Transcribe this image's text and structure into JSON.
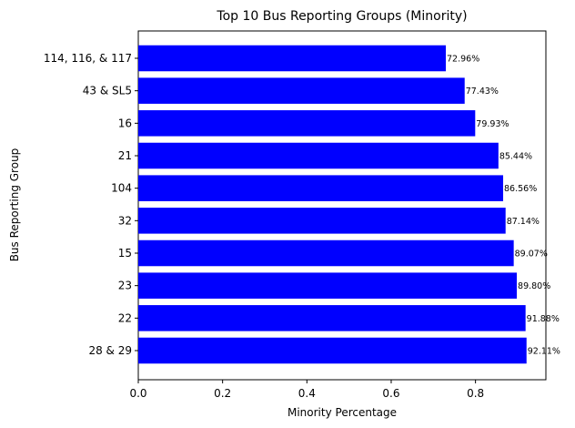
{
  "chart_data": {
    "type": "bar",
    "orientation": "horizontal",
    "title": "Top 10 Bus Reporting Groups (Minority)",
    "xlabel": "Minority Percentage",
    "ylabel": "Bus Reporting Group",
    "xlim": [
      0,
      0.967
    ],
    "xticks": [
      "0.0",
      "0.2",
      "0.4",
      "0.6",
      "0.8"
    ],
    "xtick_values": [
      0,
      0.2,
      0.4,
      0.6,
      0.8
    ],
    "bar_color": "#0000ff",
    "grid": false,
    "categories": [
      "28 & 29",
      "22",
      "23",
      "15",
      "32",
      "104",
      "21",
      "16",
      "43 & SL5",
      "114, 116, & 117"
    ],
    "values": [
      0.9211,
      0.9188,
      0.898,
      0.8907,
      0.8714,
      0.8656,
      0.8544,
      0.7993,
      0.7743,
      0.7296
    ],
    "labels": [
      "92.11%",
      "91.88%",
      "89.80%",
      "89.07%",
      "87.14%",
      "86.56%",
      "85.44%",
      "79.93%",
      "77.43%",
      "72.96%"
    ]
  }
}
